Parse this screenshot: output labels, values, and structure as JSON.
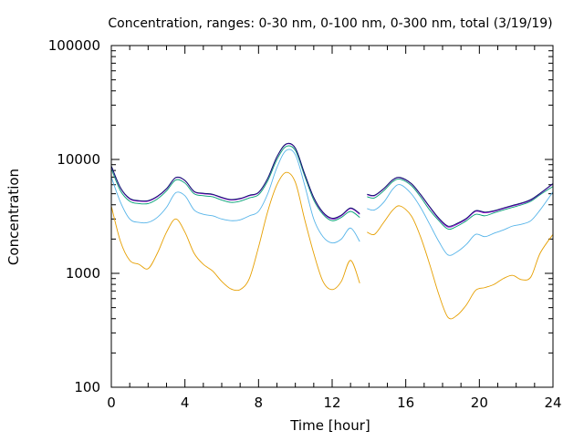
{
  "chart_data": {
    "type": "line",
    "title": "Concentration, ranges: 0-30 nm, 0-100 nm, 0-300 nm, total (3/19/19)",
    "xlabel": "Time [hour]",
    "ylabel": "Concentration",
    "xlim": [
      0,
      24
    ],
    "ylim": [
      100,
      100000
    ],
    "yscale": "log",
    "xticks": [
      0,
      4,
      8,
      12,
      16,
      20,
      24
    ],
    "xtick_labels": [
      "0",
      "4",
      "8",
      "12",
      "16",
      "20",
      "24"
    ],
    "yticks": [
      100,
      1000,
      10000,
      100000
    ],
    "ytick_labels": [
      "100",
      "1000",
      "10000",
      "100000"
    ],
    "grid": false,
    "legend": "none",
    "gap": [
      13.5,
      13.9
    ],
    "series": [
      {
        "color": "#e69f00",
        "segments": [
          [
            [
              0,
              3900
            ],
            [
              0.5,
              1900
            ],
            [
              1,
              1300
            ],
            [
              1.5,
              1200
            ],
            [
              2,
              1100
            ],
            [
              2.5,
              1500
            ],
            [
              3,
              2300
            ],
            [
              3.5,
              3000
            ],
            [
              4,
              2300
            ],
            [
              4.5,
              1500
            ],
            [
              5,
              1200
            ],
            [
              5.5,
              1050
            ],
            [
              6,
              850
            ],
            [
              6.5,
              730
            ],
            [
              7,
              720
            ],
            [
              7.5,
              900
            ],
            [
              8,
              1700
            ],
            [
              8.5,
              3500
            ],
            [
              9,
              6000
            ],
            [
              9.5,
              7700
            ],
            [
              10,
              6300
            ],
            [
              10.5,
              3000
            ],
            [
              11,
              1500
            ],
            [
              11.5,
              850
            ],
            [
              12,
              720
            ],
            [
              12.5,
              850
            ],
            [
              13,
              1300
            ],
            [
              13.5,
              820
            ]
          ],
          [
            [
              13.9,
              2300
            ],
            [
              14.3,
              2200
            ],
            [
              14.8,
              2800
            ],
            [
              15.3,
              3600
            ],
            [
              15.7,
              3900
            ],
            [
              16.3,
              3200
            ],
            [
              16.8,
              2100
            ],
            [
              17.3,
              1200
            ],
            [
              17.8,
              650
            ],
            [
              18.3,
              410
            ],
            [
              18.8,
              430
            ],
            [
              19.3,
              530
            ],
            [
              19.8,
              710
            ],
            [
              20.3,
              750
            ],
            [
              20.8,
              800
            ],
            [
              21.3,
              900
            ],
            [
              21.8,
              960
            ],
            [
              22.3,
              880
            ],
            [
              22.8,
              930
            ],
            [
              23.3,
              1500
            ],
            [
              24,
              2200
            ]
          ]
        ]
      },
      {
        "color": "#56b4e9",
        "segments": [
          [
            [
              0,
              7000
            ],
            [
              0.5,
              4200
            ],
            [
              1,
              3000
            ],
            [
              1.5,
              2800
            ],
            [
              2,
              2800
            ],
            [
              2.5,
              3100
            ],
            [
              3,
              3800
            ],
            [
              3.5,
              5100
            ],
            [
              4,
              4800
            ],
            [
              4.5,
              3600
            ],
            [
              5,
              3300
            ],
            [
              5.5,
              3200
            ],
            [
              6,
              3000
            ],
            [
              6.5,
              2900
            ],
            [
              7,
              2950
            ],
            [
              7.5,
              3200
            ],
            [
              8,
              3500
            ],
            [
              8.5,
              5000
            ],
            [
              9,
              8500
            ],
            [
              9.5,
              12000
            ],
            [
              10,
              11000
            ],
            [
              10.5,
              6000
            ],
            [
              11,
              3000
            ],
            [
              11.5,
              2100
            ],
            [
              12,
              1850
            ],
            [
              12.5,
              2000
            ],
            [
              13,
              2500
            ],
            [
              13.5,
              1900
            ]
          ],
          [
            [
              13.9,
              3700
            ],
            [
              14.3,
              3600
            ],
            [
              14.8,
              4200
            ],
            [
              15.3,
              5500
            ],
            [
              15.7,
              6000
            ],
            [
              16.3,
              5000
            ],
            [
              16.8,
              3800
            ],
            [
              17.3,
              2700
            ],
            [
              17.8,
              1900
            ],
            [
              18.3,
              1450
            ],
            [
              18.8,
              1550
            ],
            [
              19.3,
              1800
            ],
            [
              19.8,
              2200
            ],
            [
              20.3,
              2100
            ],
            [
              20.8,
              2250
            ],
            [
              21.3,
              2400
            ],
            [
              21.8,
              2600
            ],
            [
              22.3,
              2700
            ],
            [
              22.8,
              2900
            ],
            [
              23.3,
              3600
            ],
            [
              24,
              5200
            ]
          ]
        ]
      },
      {
        "color": "#009e73",
        "segments": [
          [
            [
              0,
              8300
            ],
            [
              0.5,
              5300
            ],
            [
              1,
              4300
            ],
            [
              1.5,
              4100
            ],
            [
              2,
              4100
            ],
            [
              2.5,
              4500
            ],
            [
              3,
              5300
            ],
            [
              3.5,
              6600
            ],
            [
              4,
              6200
            ],
            [
              4.5,
              5000
            ],
            [
              5,
              4800
            ],
            [
              5.5,
              4700
            ],
            [
              6,
              4400
            ],
            [
              6.5,
              4200
            ],
            [
              7,
              4300
            ],
            [
              7.5,
              4600
            ],
            [
              8,
              4900
            ],
            [
              8.5,
              6500
            ],
            [
              9,
              10000
            ],
            [
              9.5,
              13000
            ],
            [
              10,
              12000
            ],
            [
              10.5,
              7200
            ],
            [
              11,
              4400
            ],
            [
              11.5,
              3300
            ],
            [
              12,
              2900
            ],
            [
              12.5,
              3100
            ],
            [
              13,
              3500
            ],
            [
              13.5,
              3100
            ]
          ],
          [
            [
              13.9,
              4700
            ],
            [
              14.3,
              4600
            ],
            [
              14.8,
              5300
            ],
            [
              15.3,
              6400
            ],
            [
              15.7,
              6700
            ],
            [
              16.3,
              5900
            ],
            [
              16.8,
              4700
            ],
            [
              17.3,
              3600
            ],
            [
              17.8,
              2900
            ],
            [
              18.3,
              2450
            ],
            [
              18.8,
              2600
            ],
            [
              19.3,
              2900
            ],
            [
              19.8,
              3300
            ],
            [
              20.3,
              3200
            ],
            [
              20.8,
              3400
            ],
            [
              21.3,
              3600
            ],
            [
              21.8,
              3800
            ],
            [
              22.3,
              4000
            ],
            [
              22.8,
              4300
            ],
            [
              23.3,
              4900
            ],
            [
              24,
              5800
            ]
          ]
        ]
      },
      {
        "color": "#9400d3",
        "segments": [
          [
            [
              0,
              8700
            ],
            [
              0.5,
              5600
            ],
            [
              1,
              4500
            ],
            [
              1.5,
              4300
            ],
            [
              2,
              4300
            ],
            [
              2.5,
              4700
            ],
            [
              3,
              5500
            ],
            [
              3.5,
              6900
            ],
            [
              4,
              6500
            ],
            [
              4.5,
              5200
            ],
            [
              5,
              5000
            ],
            [
              5.5,
              4900
            ],
            [
              6,
              4600
            ],
            [
              6.5,
              4400
            ],
            [
              7,
              4500
            ],
            [
              7.5,
              4800
            ],
            [
              8,
              5100
            ],
            [
              8.5,
              6800
            ],
            [
              9,
              10500
            ],
            [
              9.5,
              13600
            ],
            [
              10,
              12500
            ],
            [
              10.5,
              7500
            ],
            [
              11,
              4600
            ],
            [
              11.5,
              3400
            ],
            [
              12,
              3000
            ],
            [
              12.5,
              3200
            ],
            [
              13,
              3700
            ],
            [
              13.5,
              3300
            ]
          ],
          [
            [
              13.9,
              4900
            ],
            [
              14.3,
              4800
            ],
            [
              14.8,
              5500
            ],
            [
              15.3,
              6600
            ],
            [
              15.7,
              6900
            ],
            [
              16.3,
              6100
            ],
            [
              16.8,
              4900
            ],
            [
              17.3,
              3800
            ],
            [
              17.8,
              3000
            ],
            [
              18.3,
              2550
            ],
            [
              18.8,
              2700
            ],
            [
              19.3,
              3000
            ],
            [
              19.8,
              3500
            ],
            [
              20.3,
              3400
            ],
            [
              20.8,
              3500
            ],
            [
              21.3,
              3700
            ],
            [
              21.8,
              3900
            ],
            [
              22.3,
              4100
            ],
            [
              22.8,
              4400
            ],
            [
              23.3,
              5000
            ],
            [
              24,
              6100
            ]
          ]
        ]
      },
      {
        "color": "#0a1a6b",
        "segments": [
          [
            [
              0,
              8800
            ],
            [
              0.5,
              5650
            ],
            [
              1,
              4550
            ],
            [
              1.5,
              4350
            ],
            [
              2,
              4350
            ],
            [
              2.5,
              4750
            ],
            [
              3,
              5550
            ],
            [
              3.5,
              6950
            ],
            [
              4,
              6550
            ],
            [
              4.5,
              5250
            ],
            [
              5,
              5050
            ],
            [
              5.5,
              4950
            ],
            [
              6,
              4650
            ],
            [
              6.5,
              4450
            ],
            [
              7,
              4550
            ],
            [
              7.5,
              4850
            ],
            [
              8,
              5150
            ],
            [
              8.5,
              6850
            ],
            [
              9,
              10600
            ],
            [
              9.5,
              13700
            ],
            [
              10,
              12600
            ],
            [
              10.5,
              7550
            ],
            [
              11,
              4650
            ],
            [
              11.5,
              3450
            ],
            [
              12,
              3050
            ],
            [
              12.5,
              3250
            ],
            [
              13,
              3750
            ],
            [
              13.5,
              3350
            ]
          ],
          [
            [
              13.9,
              4950
            ],
            [
              14.3,
              4850
            ],
            [
              14.8,
              5550
            ],
            [
              15.3,
              6650
            ],
            [
              15.7,
              6950
            ],
            [
              16.3,
              6150
            ],
            [
              16.8,
              4950
            ],
            [
              17.3,
              3850
            ],
            [
              17.8,
              3050
            ],
            [
              18.3,
              2600
            ],
            [
              18.8,
              2750
            ],
            [
              19.3,
              3050
            ],
            [
              19.8,
              3550
            ],
            [
              20.3,
              3450
            ],
            [
              20.8,
              3550
            ],
            [
              21.3,
              3750
            ],
            [
              21.8,
              3950
            ],
            [
              22.3,
              4150
            ],
            [
              22.8,
              4450
            ],
            [
              23.3,
              5050
            ],
            [
              24,
              6150
            ]
          ]
        ]
      }
    ]
  }
}
